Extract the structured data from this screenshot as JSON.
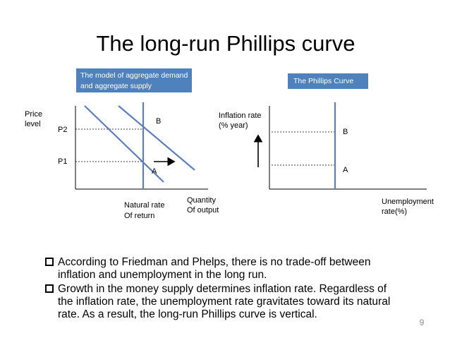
{
  "title": "The long-run Phillips curve",
  "left_diagram": {
    "box_label": [
      "The model of aggregate demand",
      "and aggregate supply"
    ],
    "y_axis_label": [
      "Price",
      "level"
    ],
    "p2": "P2",
    "p1": "P1",
    "point_b": "B",
    "point_a": "A",
    "vertical_label": [
      "Natural rate",
      "Of return"
    ],
    "x_axis_label": [
      "Quantity",
      "Of output"
    ]
  },
  "right_diagram": {
    "box_label": "The Phillips Curve",
    "y_axis_label": [
      "Inflation rate",
      "(% year)"
    ],
    "point_b": "B",
    "point_a": "A",
    "x_axis_label": [
      "Unemployment",
      "rate(%)"
    ]
  },
  "bullets": [
    [
      "According to Friedman and Phelps, there is no trade-off between",
      "inflation and unemployment in the long run."
    ],
    [
      "Growth in the money supply determines inflation rate. Regardless of",
      "the inflation rate, the unemployment rate gravitates toward its natural",
      "rate. As a result, the long-run Phillips curve is vertical."
    ]
  ],
  "page_number": "9"
}
